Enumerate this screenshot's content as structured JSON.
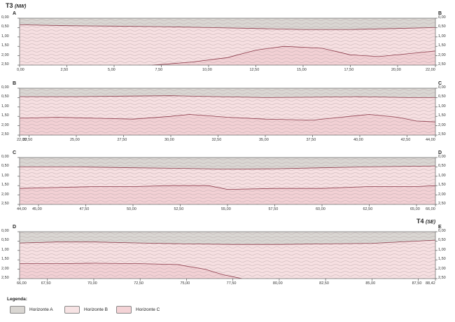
{
  "profile": {
    "title_left": {
      "code": "T3",
      "dir": "(NW)"
    },
    "title_right": {
      "code": "T4",
      "dir": "(SE)"
    }
  },
  "colors": {
    "horizonte_a": "#d9d6d2",
    "horizonte_b": "#f6dfe1",
    "horizonte_c": "#f2d0d4",
    "boundary": "#8b3a4a",
    "frame": "#777777"
  },
  "legend": {
    "title": "Legenda:",
    "items": [
      {
        "label": "Horizonte A",
        "color": "#d9d6d2"
      },
      {
        "label": "Horizonte B",
        "color": "#f7e3e4"
      },
      {
        "label": "Horizonte C",
        "color": "#f4d3d6"
      }
    ]
  },
  "chart_data": [
    {
      "type": "profile",
      "letters": [
        "A",
        "B"
      ],
      "x_ticks": [
        "0,00",
        "2,50",
        "5,00",
        "7,50",
        "10,00",
        "12,50",
        "15,00",
        "17,50",
        "20,00",
        "22,00"
      ],
      "xlim": [
        0,
        22
      ],
      "y_ticks": [
        "0,00",
        "0,50",
        "1,00",
        "1,50",
        "2,00",
        "2,50"
      ],
      "ylim": [
        0,
        2.5
      ],
      "horizon_ab": [
        [
          0,
          0.35
        ],
        [
          2.5,
          0.4
        ],
        [
          5,
          0.42
        ],
        [
          7.5,
          0.45
        ],
        [
          10,
          0.5
        ],
        [
          12.5,
          0.55
        ],
        [
          15,
          0.6
        ],
        [
          17.5,
          0.6
        ],
        [
          20,
          0.55
        ],
        [
          22,
          0.5
        ]
      ],
      "horizon_bc": [
        [
          7,
          2.5
        ],
        [
          9,
          2.35
        ],
        [
          11,
          2.1
        ],
        [
          12.5,
          1.7
        ],
        [
          14,
          1.5
        ],
        [
          16,
          1.6
        ],
        [
          17.5,
          1.95
        ],
        [
          19,
          2.05
        ],
        [
          20.5,
          1.9
        ],
        [
          22,
          1.75
        ]
      ]
    },
    {
      "type": "profile",
      "letters": [
        "B",
        "C"
      ],
      "x_ticks": [
        "22,00",
        "22,50",
        "25,00",
        "27,50",
        "30,00",
        "32,50",
        "35,00",
        "37,50",
        "40,00",
        "42,50",
        "44,00"
      ],
      "xlim": [
        22,
        44
      ],
      "y_ticks": [
        "0,00",
        "0,50",
        "1,00",
        "1,50",
        "2,00",
        "2,50"
      ],
      "ylim": [
        0,
        2.5
      ],
      "horizon_ab": [
        [
          22,
          0.45
        ],
        [
          25,
          0.45
        ],
        [
          27.5,
          0.42
        ],
        [
          30,
          0.4
        ],
        [
          32.5,
          0.45
        ],
        [
          35,
          0.5
        ],
        [
          37.5,
          0.48
        ],
        [
          40,
          0.45
        ],
        [
          42.5,
          0.5
        ],
        [
          44,
          0.5
        ]
      ],
      "horizon_bc": [
        [
          22,
          1.6
        ],
        [
          24,
          1.55
        ],
        [
          26,
          1.6
        ],
        [
          28,
          1.65
        ],
        [
          30,
          1.5
        ],
        [
          31,
          1.4
        ],
        [
          33,
          1.55
        ],
        [
          35,
          1.65
        ],
        [
          37.5,
          1.7
        ],
        [
          39,
          1.55
        ],
        [
          40.5,
          1.4
        ],
        [
          42,
          1.55
        ],
        [
          43,
          1.75
        ],
        [
          44,
          1.8
        ]
      ]
    },
    {
      "type": "profile",
      "letters": [
        "C",
        "D"
      ],
      "x_ticks": [
        "44,00",
        "45,00",
        "47,50",
        "50,00",
        "52,50",
        "55,00",
        "57,50",
        "60,00",
        "62,50",
        "65,00",
        "66,00"
      ],
      "xlim": [
        44,
        66
      ],
      "y_ticks": [
        "0,00",
        "0,50",
        "1,00",
        "1,50",
        "2,00",
        "2,50"
      ],
      "ylim": [
        0,
        2.5
      ],
      "horizon_ab": [
        [
          44,
          0.5
        ],
        [
          47,
          0.5
        ],
        [
          50,
          0.55
        ],
        [
          52.5,
          0.58
        ],
        [
          55,
          0.62
        ],
        [
          57.5,
          0.6
        ],
        [
          60,
          0.55
        ],
        [
          62.5,
          0.5
        ],
        [
          66,
          0.45
        ]
      ],
      "horizon_bc": [
        [
          44,
          1.65
        ],
        [
          46,
          1.6
        ],
        [
          48,
          1.55
        ],
        [
          50,
          1.55
        ],
        [
          52,
          1.5
        ],
        [
          54,
          1.5
        ],
        [
          55,
          1.7
        ],
        [
          57.5,
          1.65
        ],
        [
          60,
          1.65
        ],
        [
          62.5,
          1.55
        ],
        [
          65,
          1.55
        ],
        [
          66,
          1.5
        ]
      ]
    },
    {
      "type": "profile",
      "letters": [
        "D",
        "E"
      ],
      "x_ticks": [
        "66,00",
        "67,50",
        "70,00",
        "72,50",
        "75,00",
        "77,50",
        "80,00",
        "82,50",
        "85,00",
        "87,50",
        "88,42"
      ],
      "xlim": [
        66,
        88.42
      ],
      "y_ticks": [
        "0,00",
        "0,50",
        "1,00",
        "1,50",
        "2,00",
        "2,50"
      ],
      "ylim": [
        0,
        2.5
      ],
      "horizon_ab": [
        [
          66,
          0.6
        ],
        [
          68,
          0.55
        ],
        [
          70,
          0.55
        ],
        [
          72.5,
          0.6
        ],
        [
          75,
          0.65
        ],
        [
          77.5,
          0.68
        ],
        [
          80,
          0.68
        ],
        [
          82.5,
          0.65
        ],
        [
          85,
          0.62
        ],
        [
          88.42,
          0.45
        ]
      ],
      "horizon_bc": [
        [
          66,
          1.7
        ],
        [
          68,
          1.7
        ],
        [
          70,
          1.68
        ],
        [
          72.5,
          1.7
        ],
        [
          74.5,
          1.75
        ],
        [
          76,
          2.0
        ],
        [
          77,
          2.3
        ],
        [
          78,
          2.5
        ]
      ]
    }
  ]
}
